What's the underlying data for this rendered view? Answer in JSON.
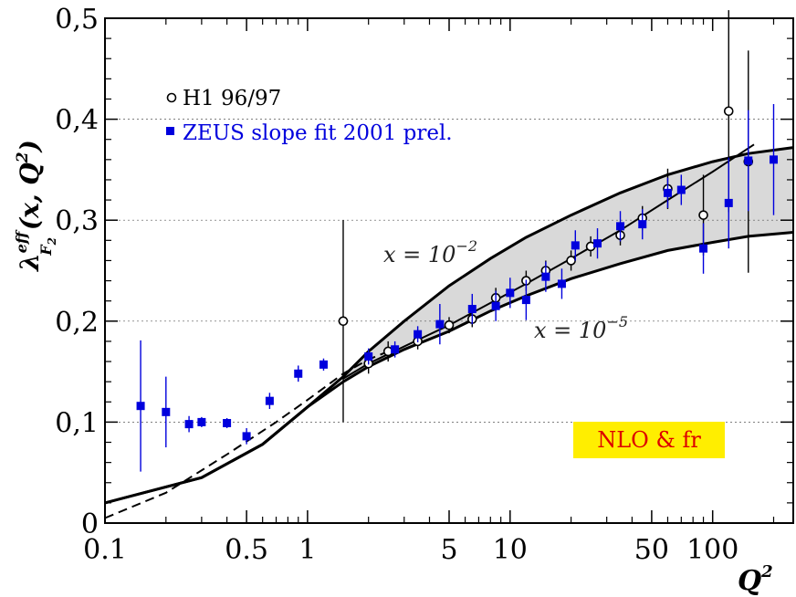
{
  "chart_data": {
    "type": "scatter",
    "x_scale": "log",
    "xlim": [
      0.1,
      250
    ],
    "ylim": [
      0,
      0.5
    ],
    "x_ticks": [
      {
        "value": 0.1,
        "label": "0.1"
      },
      {
        "value": 0.5,
        "label": "0.5"
      },
      {
        "value": 1,
        "label": "1"
      },
      {
        "value": 5,
        "label": "5"
      },
      {
        "value": 10,
        "label": "10"
      },
      {
        "value": 50,
        "label": "50"
      },
      {
        "value": 100,
        "label": "100"
      }
    ],
    "x_minor_ticks": [
      0.2,
      0.3,
      0.4,
      0.6,
      0.7,
      0.8,
      0.9,
      2,
      3,
      4,
      6,
      7,
      8,
      9,
      20,
      30,
      40,
      60,
      70,
      80,
      90,
      200
    ],
    "y_ticks": [
      {
        "value": 0,
        "label": "0"
      },
      {
        "value": 0.1,
        "label": "0,1"
      },
      {
        "value": 0.2,
        "label": "0,2"
      },
      {
        "value": 0.3,
        "label": "0,3"
      },
      {
        "value": 0.4,
        "label": "0,4"
      },
      {
        "value": 0.5,
        "label": "0,5"
      }
    ],
    "y_minor_step": 0.02,
    "xlabel": "Q",
    "xlabel_sup": "2",
    "ylabel_parts": {
      "lambda": "λ",
      "sup": "eff",
      "sub": "F",
      "subsub": "2",
      "args": "(x, Q",
      "args_sup": "2",
      "close": ")"
    },
    "legend": [
      {
        "name": "H1 96/97",
        "marker": "open-circle",
        "color": "#000000"
      },
      {
        "name": "ZEUS slope fit 2001 prel.",
        "marker": "filled-square",
        "color": "#0000dd"
      }
    ],
    "annotations": [
      {
        "text": "x = 10",
        "sup": "−2",
        "x": 2.5,
        "y": 0.265
      },
      {
        "text": "x = 10",
        "sup": "−5",
        "x": 12,
        "y": 0.19
      }
    ],
    "badge": {
      "text": "NLO & fr",
      "bg": "#ffee00",
      "color": "#dd0000"
    },
    "series": [
      {
        "name": "H1 96/97",
        "marker": "open-circle",
        "color": "#000000",
        "points": [
          {
            "x": 1.5,
            "y": 0.2,
            "err": 0.1
          },
          {
            "x": 2.0,
            "y": 0.158,
            "err": 0.01
          },
          {
            "x": 2.5,
            "y": 0.17,
            "err": 0.01
          },
          {
            "x": 3.5,
            "y": 0.18,
            "err": 0.008
          },
          {
            "x": 5.0,
            "y": 0.196,
            "err": 0.008
          },
          {
            "x": 6.5,
            "y": 0.202,
            "err": 0.008
          },
          {
            "x": 8.5,
            "y": 0.223,
            "err": 0.01
          },
          {
            "x": 12,
            "y": 0.24,
            "err": 0.01
          },
          {
            "x": 15,
            "y": 0.25,
            "err": 0.01
          },
          {
            "x": 20,
            "y": 0.26,
            "err": 0.01
          },
          {
            "x": 25,
            "y": 0.274,
            "err": 0.01
          },
          {
            "x": 35,
            "y": 0.285,
            "err": 0.01
          },
          {
            "x": 45,
            "y": 0.302,
            "err": 0.012
          },
          {
            "x": 60,
            "y": 0.331,
            "err": 0.02
          },
          {
            "x": 90,
            "y": 0.305,
            "err": 0.04
          },
          {
            "x": 120,
            "y": 0.408,
            "err": 0.1
          },
          {
            "x": 150,
            "y": 0.358,
            "err": 0.11
          }
        ]
      },
      {
        "name": "ZEUS slope fit 2001 prel.",
        "marker": "filled-square",
        "color": "#0000dd",
        "points": [
          {
            "x": 0.15,
            "y": 0.116,
            "err": 0.065
          },
          {
            "x": 0.2,
            "y": 0.11,
            "err": 0.035
          },
          {
            "x": 0.26,
            "y": 0.098,
            "err": 0.008
          },
          {
            "x": 0.3,
            "y": 0.1,
            "err": 0.005
          },
          {
            "x": 0.4,
            "y": 0.099,
            "err": 0.005
          },
          {
            "x": 0.5,
            "y": 0.086,
            "err": 0.008
          },
          {
            "x": 0.65,
            "y": 0.121,
            "err": 0.008
          },
          {
            "x": 0.9,
            "y": 0.148,
            "err": 0.008
          },
          {
            "x": 1.2,
            "y": 0.157,
            "err": 0.006
          },
          {
            "x": 2.0,
            "y": 0.165,
            "err": 0.008
          },
          {
            "x": 2.7,
            "y": 0.172,
            "err": 0.008
          },
          {
            "x": 3.5,
            "y": 0.187,
            "err": 0.008
          },
          {
            "x": 4.5,
            "y": 0.197,
            "err": 0.02
          },
          {
            "x": 6.5,
            "y": 0.212,
            "err": 0.015
          },
          {
            "x": 8.5,
            "y": 0.215,
            "err": 0.015
          },
          {
            "x": 10,
            "y": 0.228,
            "err": 0.015
          },
          {
            "x": 12,
            "y": 0.221,
            "err": 0.02
          },
          {
            "x": 15,
            "y": 0.244,
            "err": 0.015
          },
          {
            "x": 18,
            "y": 0.237,
            "err": 0.015
          },
          {
            "x": 21,
            "y": 0.275,
            "err": 0.015
          },
          {
            "x": 27,
            "y": 0.277,
            "err": 0.015
          },
          {
            "x": 35,
            "y": 0.294,
            "err": 0.015
          },
          {
            "x": 45,
            "y": 0.296,
            "err": 0.015
          },
          {
            "x": 60,
            "y": 0.327,
            "err": 0.015
          },
          {
            "x": 70,
            "y": 0.33,
            "err": 0.015
          },
          {
            "x": 90,
            "y": 0.272,
            "err": 0.025
          },
          {
            "x": 120,
            "y": 0.317,
            "err": 0.045
          },
          {
            "x": 150,
            "y": 0.359,
            "err": 0.05
          },
          {
            "x": 200,
            "y": 0.36,
            "err": 0.055
          }
        ]
      }
    ],
    "curves": [
      {
        "name": "x = 1e-2",
        "style": "solid",
        "points": [
          [
            0.1,
            0.02
          ],
          [
            0.3,
            0.045
          ],
          [
            0.6,
            0.078
          ],
          [
            1,
            0.115
          ],
          [
            1.5,
            0.145
          ],
          [
            2,
            0.17
          ],
          [
            3,
            0.2
          ],
          [
            5,
            0.235
          ],
          [
            8,
            0.262
          ],
          [
            12,
            0.283
          ],
          [
            20,
            0.305
          ],
          [
            35,
            0.327
          ],
          [
            60,
            0.345
          ],
          [
            100,
            0.358
          ],
          [
            150,
            0.366
          ],
          [
            250,
            0.372
          ]
        ]
      },
      {
        "name": "x = 1e-5",
        "style": "solid",
        "points": [
          [
            0.1,
            0.02
          ],
          [
            0.3,
            0.045
          ],
          [
            0.6,
            0.078
          ],
          [
            1,
            0.115
          ],
          [
            1.5,
            0.14
          ],
          [
            2,
            0.155
          ],
          [
            3,
            0.172
          ],
          [
            5,
            0.19
          ],
          [
            8,
            0.21
          ],
          [
            12,
            0.225
          ],
          [
            20,
            0.242
          ],
          [
            35,
            0.257
          ],
          [
            60,
            0.27
          ],
          [
            100,
            0.278
          ],
          [
            150,
            0.284
          ],
          [
            250,
            0.288
          ]
        ]
      },
      {
        "name": "H1 fit",
        "style": "solid",
        "points": [
          [
            1.5,
            0.143
          ],
          [
            2,
            0.158
          ],
          [
            3,
            0.175
          ],
          [
            5,
            0.196
          ],
          [
            8,
            0.218
          ],
          [
            12,
            0.237
          ],
          [
            20,
            0.262
          ],
          [
            35,
            0.29
          ],
          [
            60,
            0.32
          ],
          [
            100,
            0.348
          ],
          [
            160,
            0.375
          ]
        ]
      },
      {
        "name": "dashed",
        "style": "dashed",
        "points": [
          [
            0.1,
            0.005
          ],
          [
            0.2,
            0.03
          ],
          [
            0.4,
            0.068
          ],
          [
            0.7,
            0.1
          ],
          [
            1,
            0.122
          ],
          [
            1.5,
            0.148
          ],
          [
            2,
            0.162
          ],
          [
            2.5,
            0.17
          ]
        ]
      }
    ]
  }
}
